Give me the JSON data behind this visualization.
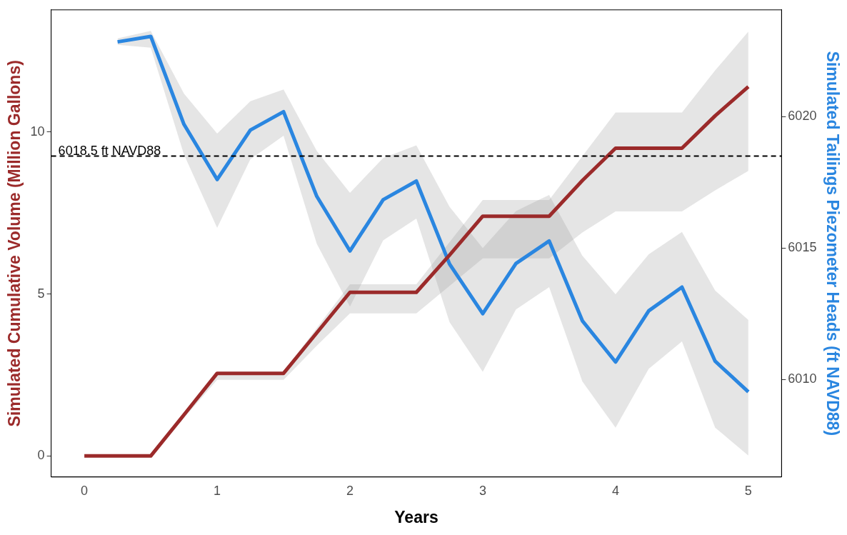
{
  "chart_data": {
    "type": "line",
    "xlabel": "Years",
    "ylabel": "Simulated Cumulative Volume (Million Gallons)",
    "y2label": "Simulated Tailings Piezometer Heads (ft NAVD88)",
    "xlim": [
      -0.25,
      5.25
    ],
    "xticks": [
      0,
      1,
      2,
      3,
      4,
      5
    ],
    "ylim": [
      -0.65,
      13.77
    ],
    "yticks": [
      0,
      5,
      10
    ],
    "y2lim": [
      6006.28,
      6024.07
    ],
    "y2ticks": [
      6010,
      6015,
      6020
    ],
    "grid": false,
    "legend": false,
    "marker": "none",
    "line_style": "solid",
    "ref_lines": [
      {
        "axis": "y2",
        "value": 6018.5,
        "label": "6018.5 ft NAVD88",
        "line_style": "dashed",
        "color": "#000000"
      }
    ],
    "series": [
      {
        "color": "#9b2a2a",
        "x": [
          0,
          0.25,
          0.5,
          0.75,
          1,
          1.25,
          1.5,
          1.75,
          2,
          2.25,
          2.5,
          2.75,
          3,
          3.25,
          3.5,
          3.75,
          4,
          4.25,
          4.5,
          4.75,
          5
        ],
        "values": [
          0,
          0,
          0,
          1.27,
          2.55,
          2.55,
          2.55,
          3.8,
          5.05,
          5.05,
          5.05,
          6.2,
          7.4,
          7.4,
          7.4,
          8.5,
          9.5,
          9.5,
          9.5,
          10.5,
          11.4
        ],
        "lower": [
          0,
          0,
          0,
          1.17,
          2.35,
          2.35,
          2.35,
          3.4,
          4.4,
          4.4,
          4.4,
          5.25,
          6.1,
          6.1,
          6.1,
          6.9,
          7.55,
          7.55,
          7.55,
          8.2,
          8.8
        ],
        "upper": [
          0,
          0,
          0,
          1.3,
          2.6,
          2.6,
          2.6,
          3.95,
          5.3,
          5.3,
          5.3,
          6.6,
          7.9,
          7.9,
          7.9,
          9.25,
          10.6,
          10.6,
          10.6,
          11.9,
          13.1
        ]
      },
      {
        "color": "#2a86e0",
        "axis": "y2",
        "x": [
          0.25,
          0.5,
          0.75,
          1,
          1.25,
          1.5,
          1.75,
          2,
          2.25,
          2.5,
          2.75,
          3,
          3.25,
          3.5,
          3.75,
          4,
          4.25,
          4.5,
          4.75,
          5
        ],
        "values": [
          6022.85,
          6023.06,
          6019.71,
          6017.61,
          6019.49,
          6020.19,
          6016.97,
          6014.89,
          6016.84,
          6017.55,
          6014.39,
          6012.5,
          6014.41,
          6015.27,
          6012.23,
          6010.66,
          6012.61,
          6013.51,
          6010.69,
          6009.52
        ],
        "lower": [
          6022.74,
          6022.63,
          6018.56,
          6015.77,
          6018.38,
          6019.28,
          6015.16,
          6012.77,
          6015.29,
          6016.12,
          6012.18,
          6010.29,
          6012.66,
          6013.51,
          6009.92,
          6008.16,
          6010.4,
          6011.44,
          6008.16,
          6007.1
        ],
        "upper": [
          6022.98,
          6023.27,
          6020.88,
          6019.36,
          6020.59,
          6021.04,
          6018.7,
          6017.1,
          6018.43,
          6018.91,
          6016.57,
          6015.0,
          6016.41,
          6017.02,
          6014.71,
          6013.24,
          6014.76,
          6015.61,
          6013.38,
          6012.26
        ]
      }
    ]
  }
}
